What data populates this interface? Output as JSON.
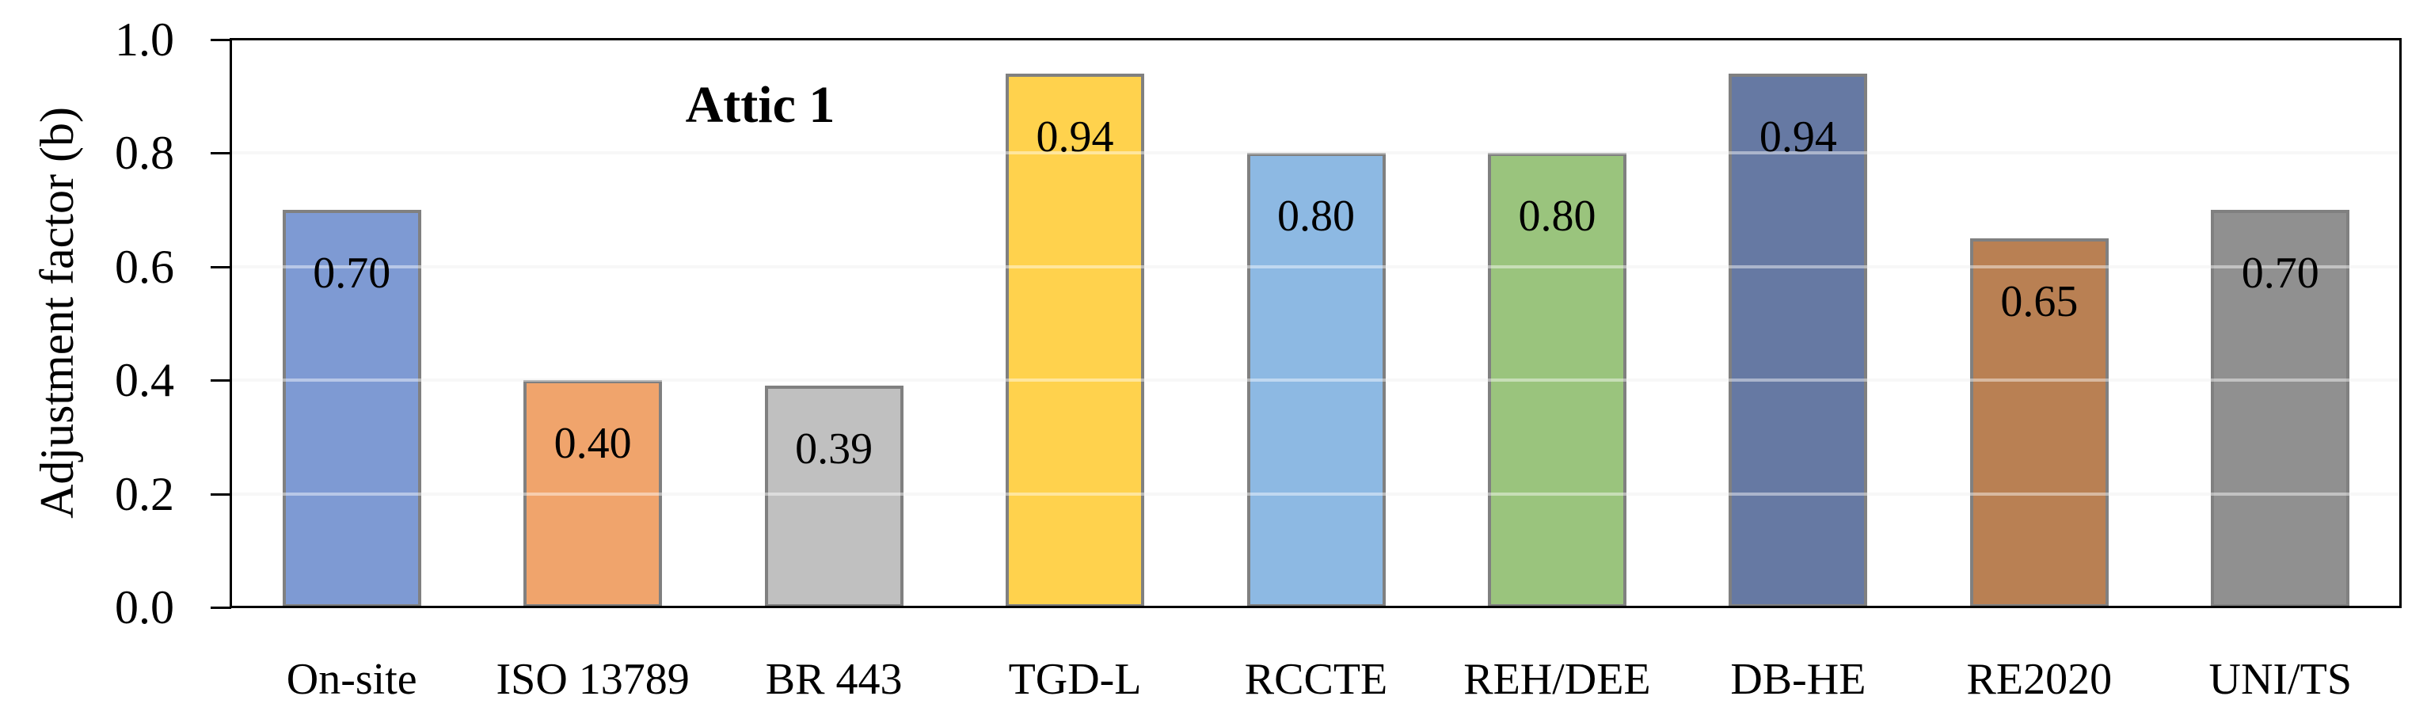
{
  "chart_data": {
    "type": "bar",
    "annotation": "Attic 1",
    "ylabel": "Adjustment factor (b)",
    "xlabel": "",
    "categories": [
      "On-site",
      "ISO 13789",
      "BR 443",
      "TGD-L",
      "RCCTE",
      "REH/DEE",
      "DB-HE",
      "RE2020",
      "UNI/TS"
    ],
    "values": [
      0.7,
      0.4,
      0.39,
      0.94,
      0.8,
      0.8,
      0.94,
      0.65,
      0.7
    ],
    "data_labels": [
      "0.70",
      "0.40",
      "0.39",
      "0.94",
      "0.80",
      "0.80",
      "0.94",
      "0.65",
      "0.70"
    ],
    "bar_colors": [
      "#7E9AD3",
      "#F0A46C",
      "#C0C0C0",
      "#FFD24D",
      "#8DB9E3",
      "#9AC47D",
      "#6679A3",
      "#B98053",
      "#909090"
    ],
    "bar_border_color": "#808080",
    "ylim": [
      0.0,
      1.0
    ],
    "yticks": [
      {
        "value": 0.0,
        "label": "0.0"
      },
      {
        "value": 0.2,
        "label": "0.2"
      },
      {
        "value": 0.4,
        "label": "0.4"
      },
      {
        "value": 0.6,
        "label": "0.6"
      },
      {
        "value": 0.8,
        "label": "0.8"
      },
      {
        "value": 1.0,
        "label": "1.0"
      }
    ],
    "grid": "horizontal",
    "gridline_color": "#F0F0F0",
    "axis_color": "#000000",
    "legend": "none"
  }
}
